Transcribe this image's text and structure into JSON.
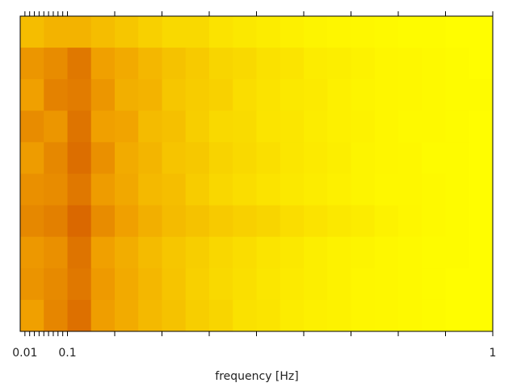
{
  "chart_data": {
    "type": "heatmap",
    "x_label": "frequency [Hz]",
    "xlim": [
      0,
      1
    ],
    "xticks": [
      0.01,
      0.1,
      1
    ],
    "minor_xticks": [
      0.02,
      0.03,
      0.04,
      0.05,
      0.06,
      0.07,
      0.08,
      0.09,
      0.2,
      0.3,
      0.4,
      0.5,
      0.6,
      0.7,
      0.8,
      0.9
    ],
    "x_edges": [
      0,
      0.05,
      0.1,
      0.15,
      0.2,
      0.25,
      0.3,
      0.35,
      0.4,
      0.45,
      0.5,
      0.55,
      0.6,
      0.65,
      0.7,
      0.75,
      0.8,
      0.85,
      0.9,
      0.95,
      1
    ],
    "zlim": [
      0,
      1
    ],
    "colors": [
      "#ffff00",
      "#f0a000",
      "#c83c00"
    ],
    "z": [
      [
        0.35,
        0.4,
        0.4,
        0.35,
        0.3,
        0.25,
        0.2,
        0.2,
        0.15,
        0.12,
        0.1,
        0.08,
        0.06,
        0.05,
        0.04,
        0.03,
        0.02,
        0.02,
        0.01,
        0.01
      ],
      [
        0.55,
        0.6,
        0.7,
        0.5,
        0.45,
        0.38,
        0.32,
        0.28,
        0.22,
        0.2,
        0.16,
        0.14,
        0.1,
        0.09,
        0.07,
        0.05,
        0.04,
        0.03,
        0.02,
        0.01
      ],
      [
        0.5,
        0.65,
        0.68,
        0.55,
        0.42,
        0.4,
        0.3,
        0.27,
        0.24,
        0.18,
        0.15,
        0.12,
        0.11,
        0.08,
        0.06,
        0.05,
        0.04,
        0.03,
        0.02,
        0.02
      ],
      [
        0.6,
        0.55,
        0.72,
        0.5,
        0.48,
        0.36,
        0.33,
        0.26,
        0.2,
        0.19,
        0.14,
        0.13,
        0.1,
        0.08,
        0.07,
        0.05,
        0.03,
        0.03,
        0.02,
        0.01
      ],
      [
        0.52,
        0.62,
        0.75,
        0.58,
        0.44,
        0.39,
        0.31,
        0.29,
        0.23,
        0.2,
        0.17,
        0.13,
        0.11,
        0.09,
        0.06,
        0.05,
        0.04,
        0.02,
        0.02,
        0.01
      ],
      [
        0.58,
        0.6,
        0.7,
        0.52,
        0.46,
        0.37,
        0.34,
        0.27,
        0.21,
        0.18,
        0.15,
        0.12,
        0.1,
        0.08,
        0.06,
        0.04,
        0.04,
        0.03,
        0.02,
        0.01
      ],
      [
        0.62,
        0.66,
        0.78,
        0.6,
        0.5,
        0.42,
        0.36,
        0.32,
        0.28,
        0.25,
        0.22,
        0.18,
        0.15,
        0.12,
        0.1,
        0.07,
        0.05,
        0.03,
        0.02,
        0.01
      ],
      [
        0.54,
        0.58,
        0.72,
        0.5,
        0.43,
        0.36,
        0.3,
        0.26,
        0.21,
        0.18,
        0.14,
        0.12,
        0.09,
        0.07,
        0.06,
        0.04,
        0.03,
        0.02,
        0.02,
        0.01
      ],
      [
        0.56,
        0.61,
        0.7,
        0.53,
        0.45,
        0.38,
        0.31,
        0.25,
        0.2,
        0.17,
        0.13,
        0.11,
        0.09,
        0.07,
        0.05,
        0.04,
        0.03,
        0.02,
        0.01,
        0.01
      ],
      [
        0.5,
        0.63,
        0.74,
        0.51,
        0.44,
        0.37,
        0.32,
        0.26,
        0.22,
        0.16,
        0.14,
        0.1,
        0.08,
        0.07,
        0.05,
        0.04,
        0.03,
        0.02,
        0.01,
        0.01
      ]
    ]
  }
}
